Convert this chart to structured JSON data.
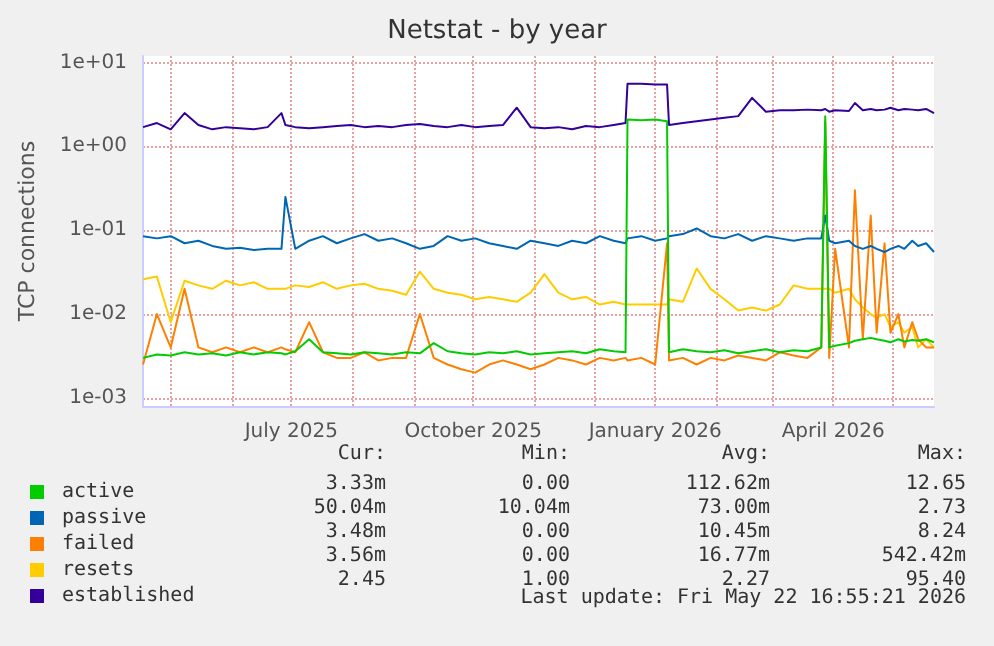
{
  "chart_data": {
    "type": "line",
    "title": "Netstat - by year",
    "ylabel": "TCP connections",
    "log": "y",
    "grid": true,
    "legend": "bottom left",
    "xlim": [
      "2025-04-17",
      "2026-05-22"
    ],
    "xticks": [
      {
        "value": "2025-05-01",
        "label": null
      },
      {
        "value": "2025-06-01",
        "label": null
      },
      {
        "value": "2025-07-01",
        "label": "July 2025"
      },
      {
        "value": "2025-08-01",
        "label": null
      },
      {
        "value": "2025-09-01",
        "label": null
      },
      {
        "value": "2025-10-01",
        "label": "October 2025"
      },
      {
        "value": "2025-11-01",
        "label": null
      },
      {
        "value": "2025-12-01",
        "label": null
      },
      {
        "value": "2026-01-01",
        "label": "January 2026"
      },
      {
        "value": "2026-02-01",
        "label": null
      },
      {
        "value": "2026-03-01",
        "label": null
      },
      {
        "value": "2026-04-01",
        "label": "April 2026"
      },
      {
        "value": "2026-05-01",
        "label": null
      }
    ],
    "ylim": [
      0.0008,
      12
    ],
    "yticks": [
      {
        "value": 0.001,
        "label": "1e-03"
      },
      {
        "value": 0.01,
        "label": "1e-02"
      },
      {
        "value": 0.1,
        "label": "1e-01"
      },
      {
        "value": 1,
        "label": "1e+00"
      },
      {
        "value": 10,
        "label": "1e+01"
      }
    ],
    "x": [
      "2025-04-17",
      "2025-04-24",
      "2025-05-01",
      "2025-05-08",
      "2025-05-15",
      "2025-05-22",
      "2025-05-29",
      "2025-06-05",
      "2025-06-12",
      "2025-06-19",
      "2025-06-26",
      "2025-06-28",
      "2025-07-03",
      "2025-07-10",
      "2025-07-17",
      "2025-07-24",
      "2025-07-31",
      "2025-08-07",
      "2025-08-14",
      "2025-08-21",
      "2025-08-28",
      "2025-09-04",
      "2025-09-11",
      "2025-09-18",
      "2025-09-25",
      "2025-10-02",
      "2025-10-09",
      "2025-10-16",
      "2025-10-23",
      "2025-10-30",
      "2025-11-06",
      "2025-11-13",
      "2025-11-20",
      "2025-11-27",
      "2025-12-04",
      "2025-12-11",
      "2025-12-17",
      "2025-12-18",
      "2025-12-25",
      "2026-01-01",
      "2026-01-07",
      "2026-01-08",
      "2026-01-15",
      "2026-01-22",
      "2026-01-29",
      "2026-02-05",
      "2026-02-12",
      "2026-02-19",
      "2026-02-26",
      "2026-03-05",
      "2026-03-12",
      "2026-03-19",
      "2026-03-26",
      "2026-03-28",
      "2026-03-30",
      "2026-04-02",
      "2026-04-09",
      "2026-04-12",
      "2026-04-16",
      "2026-04-20",
      "2026-04-23",
      "2026-04-27",
      "2026-04-30",
      "2026-05-04",
      "2026-05-07",
      "2026-05-11",
      "2026-05-14",
      "2026-05-18",
      "2026-05-22"
    ],
    "series": [
      {
        "name": "active",
        "color": "#00cc00",
        "values": [
          0.003,
          0.0033,
          0.0032,
          0.0035,
          0.0033,
          0.0034,
          0.0032,
          0.0035,
          0.0033,
          0.0035,
          0.0034,
          0.0033,
          0.0036,
          0.005,
          0.0035,
          0.0034,
          0.0033,
          0.0035,
          0.0034,
          0.0033,
          0.0035,
          0.0034,
          0.0045,
          0.0036,
          0.0034,
          0.0033,
          0.0035,
          0.0034,
          0.0036,
          0.0033,
          0.0034,
          0.0035,
          0.0036,
          0.0034,
          0.0038,
          0.0036,
          0.0035,
          2.1,
          2.05,
          2.1,
          2.0,
          0.0035,
          0.0038,
          0.0036,
          0.0035,
          0.0037,
          0.0034,
          0.0036,
          0.0038,
          0.0035,
          0.0037,
          0.0036,
          0.004,
          2.3,
          0.004,
          0.0042,
          0.0045,
          0.0048,
          0.005,
          0.0052,
          0.005,
          0.0048,
          0.0046,
          0.005,
          0.0047,
          0.0049,
          0.0048,
          0.005,
          0.0046
        ]
      },
      {
        "name": "passive",
        "color": "#0066b3",
        "values": [
          0.085,
          0.08,
          0.085,
          0.07,
          0.075,
          0.065,
          0.06,
          0.062,
          0.058,
          0.06,
          0.06,
          0.25,
          0.06,
          0.075,
          0.085,
          0.07,
          0.08,
          0.09,
          0.075,
          0.08,
          0.07,
          0.06,
          0.065,
          0.085,
          0.075,
          0.08,
          0.07,
          0.065,
          0.06,
          0.075,
          0.07,
          0.065,
          0.075,
          0.07,
          0.085,
          0.075,
          0.07,
          0.08,
          0.085,
          0.075,
          0.08,
          0.085,
          0.09,
          0.105,
          0.085,
          0.08,
          0.09,
          0.075,
          0.085,
          0.08,
          0.075,
          0.08,
          0.08,
          0.15,
          0.075,
          0.07,
          0.075,
          0.065,
          0.06,
          0.065,
          0.06,
          0.055,
          0.06,
          0.065,
          0.06,
          0.075,
          0.065,
          0.07,
          0.055
        ]
      },
      {
        "name": "failed",
        "color": "#ff8000",
        "values": [
          0.0025,
          0.01,
          0.004,
          0.02,
          0.004,
          0.0035,
          0.004,
          0.0035,
          0.004,
          0.0035,
          0.004,
          0.0038,
          0.0035,
          0.008,
          0.0035,
          0.003,
          0.003,
          0.0035,
          0.0028,
          0.003,
          0.003,
          0.01,
          0.003,
          0.0025,
          0.0022,
          0.002,
          0.0025,
          0.0028,
          0.0025,
          0.0022,
          0.0025,
          0.003,
          0.0028,
          0.0025,
          0.003,
          0.0028,
          0.003,
          0.0028,
          0.003,
          0.0025,
          0.07,
          0.0028,
          0.003,
          0.0025,
          0.003,
          0.0028,
          0.0032,
          0.003,
          0.0028,
          0.0035,
          0.0032,
          0.003,
          0.004,
          2.0,
          0.003,
          0.06,
          0.004,
          0.3,
          0.005,
          0.15,
          0.006,
          0.07,
          0.006,
          0.01,
          0.004,
          0.008,
          0.005,
          0.004,
          0.004
        ]
      },
      {
        "name": "resets",
        "color": "#ffcc00",
        "values": [
          0.026,
          0.028,
          0.008,
          0.025,
          0.022,
          0.02,
          0.025,
          0.022,
          0.024,
          0.02,
          0.02,
          0.02,
          0.022,
          0.021,
          0.024,
          0.02,
          0.022,
          0.023,
          0.02,
          0.019,
          0.017,
          0.032,
          0.02,
          0.018,
          0.017,
          0.015,
          0.016,
          0.015,
          0.014,
          0.018,
          0.03,
          0.018,
          0.015,
          0.016,
          0.013,
          0.014,
          0.013,
          0.013,
          0.013,
          0.013,
          0.013,
          0.015,
          0.014,
          0.035,
          0.02,
          0.015,
          0.011,
          0.012,
          0.011,
          0.013,
          0.022,
          0.02,
          0.02,
          0.02,
          0.02,
          0.018,
          0.02,
          0.015,
          0.012,
          0.01,
          0.009,
          0.01,
          0.007,
          0.008,
          0.006,
          0.007,
          0.004,
          0.005,
          0.004
        ]
      },
      {
        "name": "established",
        "color": "#330099",
        "values": [
          1.7,
          1.9,
          1.6,
          2.5,
          1.8,
          1.6,
          1.7,
          1.65,
          1.6,
          1.7,
          2.5,
          1.8,
          1.7,
          1.65,
          1.7,
          1.75,
          1.8,
          1.7,
          1.75,
          1.7,
          1.8,
          1.85,
          1.75,
          1.7,
          1.8,
          1.7,
          1.75,
          1.8,
          2.9,
          1.7,
          1.65,
          1.7,
          1.6,
          1.75,
          1.7,
          1.8,
          1.9,
          5.6,
          5.6,
          5.5,
          5.5,
          1.8,
          1.9,
          2.0,
          2.1,
          2.2,
          2.3,
          3.8,
          2.6,
          2.7,
          2.7,
          2.75,
          2.7,
          2.8,
          2.6,
          2.7,
          2.65,
          3.3,
          2.7,
          2.8,
          2.7,
          2.75,
          2.9,
          2.7,
          2.8,
          2.75,
          2.7,
          2.8,
          2.5
        ]
      }
    ],
    "annotations": [
      "Cur:",
      "Min:",
      "Avg:",
      "Max:",
      "3.33m",
      "0.00",
      "112.62m",
      "12.65",
      "50.04m",
      "10.04m",
      "73.00m",
      "2.73",
      "3.48m",
      "0.00",
      "10.45m",
      "8.24",
      "3.56m",
      "0.00",
      "16.77m",
      "542.42m",
      "2.45",
      "1.00",
      "2.27",
      "95.40",
      "Last update: Fri May 22 16:55:21 2026"
    ]
  }
}
